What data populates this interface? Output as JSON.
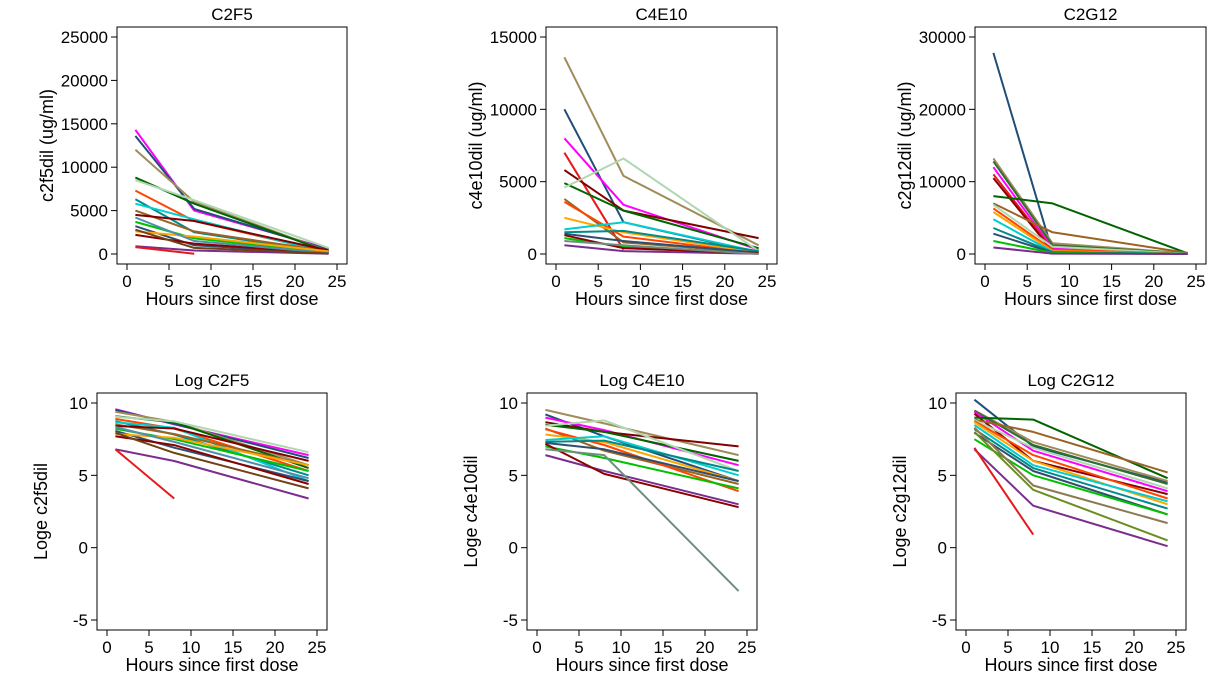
{
  "chart_data": [
    {
      "type": "line",
      "title": "C2F5",
      "xlabel": "Hours since first dose",
      "ylabel": "c2f5dil (ug/ml)",
      "xlim": [
        0,
        25
      ],
      "ylim": [
        0,
        25000
      ],
      "xticks": [
        0,
        5,
        10,
        15,
        20,
        25
      ],
      "yticks": [
        0,
        5000,
        10000,
        15000,
        20000,
        25000
      ],
      "grid": false,
      "x": [
        1,
        8,
        24
      ],
      "series": [
        {
          "color": "#ff00ff",
          "values": [
            14300,
            5000,
            600
          ]
        },
        {
          "color": "#1f4e79",
          "values": [
            13600,
            5200,
            500
          ]
        },
        {
          "color": "#a08c5a",
          "values": [
            12000,
            6000,
            300
          ]
        },
        {
          "color": "#006400",
          "values": [
            8800,
            5800,
            250
          ]
        },
        {
          "color": "#b0d8b0",
          "values": [
            8500,
            6200,
            700
          ]
        },
        {
          "color": "#ff4500",
          "values": [
            7300,
            3800,
            200
          ]
        },
        {
          "color": "#008b8b",
          "values": [
            6300,
            2500,
            150
          ]
        },
        {
          "color": "#00ced1",
          "values": [
            5800,
            4000,
            100
          ]
        },
        {
          "color": "#9a6324",
          "values": [
            5000,
            2600,
            300
          ]
        },
        {
          "color": "#800000",
          "values": [
            4500,
            3800,
            400
          ]
        },
        {
          "color": "#00c000",
          "values": [
            3700,
            1800,
            200
          ]
        },
        {
          "color": "#2f4f6f",
          "values": [
            3200,
            1000,
            100
          ]
        },
        {
          "color": "#ffa500",
          "values": [
            2600,
            2000,
            300
          ]
        },
        {
          "color": "#8b0000",
          "values": [
            2200,
            1200,
            80
          ]
        },
        {
          "color": "#7b2d8e",
          "values": [
            900,
            400,
            30
          ]
        },
        {
          "color": "#e41a1c",
          "values": [
            800,
            30,
            null
          ]
        },
        {
          "color": "#4f8fae",
          "values": [
            4200,
            1500,
            120
          ]
        },
        {
          "color": "#704214",
          "values": [
            2800,
            700,
            60
          ]
        }
      ]
    },
    {
      "type": "line",
      "title": "C4E10",
      "xlabel": "Hours since first dose",
      "ylabel": "c4e10dil (ug/ml)",
      "xlim": [
        0,
        25
      ],
      "ylim": [
        0,
        15000
      ],
      "xticks": [
        0,
        5,
        10,
        15,
        20,
        25
      ],
      "yticks": [
        0,
        5000,
        10000,
        15000
      ],
      "grid": false,
      "x": [
        1,
        8,
        24
      ],
      "series": [
        {
          "color": "#a08c5a",
          "values": [
            13600,
            5400,
            600
          ]
        },
        {
          "color": "#1f4e79",
          "values": [
            10000,
            2200,
            100
          ]
        },
        {
          "color": "#ff00ff",
          "values": [
            8000,
            3400,
            300
          ]
        },
        {
          "color": "#e41a1c",
          "values": [
            7000,
            300,
            null
          ]
        },
        {
          "color": "#800000",
          "values": [
            5800,
            3000,
            1100
          ]
        },
        {
          "color": "#006400",
          "values": [
            4900,
            3000,
            400
          ]
        },
        {
          "color": "#b0d8b0",
          "values": [
            4600,
            6600,
            200
          ]
        },
        {
          "color": "#9a6324",
          "values": [
            3800,
            800,
            80
          ]
        },
        {
          "color": "#ff4500",
          "values": [
            3600,
            1200,
            50
          ]
        },
        {
          "color": "#ffa500",
          "values": [
            2500,
            1500,
            100
          ]
        },
        {
          "color": "#00ced1",
          "values": [
            1700,
            2200,
            150
          ]
        },
        {
          "color": "#008b8b",
          "values": [
            1500,
            1600,
            200
          ]
        },
        {
          "color": "#00c000",
          "values": [
            1100,
            500,
            60
          ]
        },
        {
          "color": "#2f4f6f",
          "values": [
            1400,
            900,
            100
          ]
        },
        {
          "color": "#7b2d8e",
          "values": [
            600,
            200,
            20
          ]
        },
        {
          "color": "#8b0000",
          "values": [
            1300,
            400,
            40
          ]
        },
        {
          "color": "#708e80",
          "values": [
            900,
            600,
            0
          ]
        }
      ]
    },
    {
      "type": "line",
      "title": "C2G12",
      "xlabel": "Hours since first dose",
      "ylabel": "c2g12dil (ug/ml)",
      "xlim": [
        0,
        25
      ],
      "ylim": [
        0,
        30000
      ],
      "xticks": [
        0,
        5,
        10,
        15,
        20,
        25
      ],
      "yticks": [
        0,
        10000,
        20000,
        30000
      ],
      "grid": false,
      "x": [
        1,
        8,
        24
      ],
      "series": [
        {
          "color": "#1f4e79",
          "values": [
            27800,
            300,
            50
          ]
        },
        {
          "color": "#a08c5a",
          "values": [
            13200,
            1500,
            100
          ]
        },
        {
          "color": "#2f6f2f",
          "values": [
            12800,
            1200,
            80
          ]
        },
        {
          "color": "#ff00ff",
          "values": [
            12000,
            800,
            50
          ]
        },
        {
          "color": "#e41a1c",
          "values": [
            11000,
            600,
            null
          ]
        },
        {
          "color": "#8b0000",
          "values": [
            10500,
            400,
            40
          ]
        },
        {
          "color": "#006400",
          "values": [
            8000,
            7000,
            100
          ]
        },
        {
          "color": "#9a6324",
          "values": [
            7000,
            3000,
            150
          ]
        },
        {
          "color": "#b0d8b0",
          "values": [
            6800,
            1000,
            60
          ]
        },
        {
          "color": "#ff4500",
          "values": [
            6300,
            600,
            30
          ]
        },
        {
          "color": "#ffa500",
          "values": [
            5800,
            400,
            20
          ]
        },
        {
          "color": "#00ced1",
          "values": [
            4800,
            300,
            25
          ]
        },
        {
          "color": "#008b8b",
          "values": [
            3600,
            250,
            15
          ]
        },
        {
          "color": "#2f4f6f",
          "values": [
            2800,
            200,
            10
          ]
        },
        {
          "color": "#00c000",
          "values": [
            1800,
            150,
            10
          ]
        },
        {
          "color": "#7b2d8e",
          "values": [
            900,
            50,
            5
          ]
        }
      ]
    },
    {
      "type": "line",
      "title": "Log C2F5",
      "xlabel": "Hours since first dose",
      "ylabel": "Loge c2f5dil",
      "xlim": [
        0,
        25
      ],
      "ylim": [
        -5,
        10
      ],
      "xticks": [
        0,
        5,
        10,
        15,
        20,
        25
      ],
      "yticks": [
        -5,
        0,
        5,
        10
      ],
      "grid": false,
      "x": [
        1,
        8,
        24
      ],
      "series": [
        {
          "color": "#ff00ff",
          "values": [
            9.57,
            8.52,
            6.4
          ]
        },
        {
          "color": "#1f4e79",
          "values": [
            9.52,
            8.56,
            6.2
          ]
        },
        {
          "color": "#a08c5a",
          "values": [
            9.39,
            8.7,
            5.7
          ]
        },
        {
          "color": "#006400",
          "values": [
            9.08,
            8.67,
            5.5
          ]
        },
        {
          "color": "#b0d8b0",
          "values": [
            9.05,
            8.73,
            6.6
          ]
        },
        {
          "color": "#ff4500",
          "values": [
            8.9,
            8.24,
            5.3
          ]
        },
        {
          "color": "#008b8b",
          "values": [
            8.75,
            7.82,
            5.0
          ]
        },
        {
          "color": "#00ced1",
          "values": [
            8.67,
            8.29,
            4.6
          ]
        },
        {
          "color": "#9a6324",
          "values": [
            8.52,
            7.86,
            5.7
          ]
        },
        {
          "color": "#800000",
          "values": [
            8.41,
            8.24,
            6.0
          ]
        },
        {
          "color": "#00c000",
          "values": [
            8.22,
            7.5,
            5.3
          ]
        },
        {
          "color": "#2f4f6f",
          "values": [
            8.07,
            6.91,
            4.6
          ]
        },
        {
          "color": "#ffa500",
          "values": [
            7.86,
            7.6,
            5.7
          ]
        },
        {
          "color": "#8b0000",
          "values": [
            7.7,
            7.09,
            4.4
          ]
        },
        {
          "color": "#7b2d8e",
          "values": [
            6.8,
            5.99,
            3.4
          ]
        },
        {
          "color": "#e41a1c",
          "values": [
            6.8,
            3.4,
            null
          ]
        },
        {
          "color": "#4f8fae",
          "values": [
            8.34,
            7.31,
            4.8
          ]
        },
        {
          "color": "#704214",
          "values": [
            7.94,
            6.55,
            4.1
          ]
        }
      ]
    },
    {
      "type": "line",
      "title": "Log C4E10",
      "xlabel": "Hours since first dose",
      "ylabel": "Loge c4e10dil",
      "xlim": [
        0,
        25
      ],
      "ylim": [
        -5,
        10
      ],
      "xticks": [
        0,
        5,
        10,
        15,
        20,
        25
      ],
      "yticks": [
        -5,
        0,
        5,
        10
      ],
      "grid": false,
      "x": [
        1,
        8,
        24
      ],
      "series": [
        {
          "color": "#a08c5a",
          "values": [
            9.52,
            8.59,
            6.4
          ]
        },
        {
          "color": "#1f4e79",
          "values": [
            9.21,
            7.7,
            4.6
          ]
        },
        {
          "color": "#ff00ff",
          "values": [
            8.99,
            8.13,
            5.7
          ]
        },
        {
          "color": "#800000",
          "values": [
            8.67,
            8.0,
            7.0
          ]
        },
        {
          "color": "#006400",
          "values": [
            8.5,
            8.0,
            6.0
          ]
        },
        {
          "color": "#b0d8b0",
          "values": [
            8.43,
            8.8,
            5.3
          ]
        },
        {
          "color": "#9a6324",
          "values": [
            8.24,
            6.7,
            4.4
          ]
        },
        {
          "color": "#ff4500",
          "values": [
            8.19,
            7.1,
            3.9
          ]
        },
        {
          "color": "#ffa500",
          "values": [
            7.82,
            7.3,
            4.6
          ]
        },
        {
          "color": "#00ced1",
          "values": [
            7.44,
            7.7,
            5.0
          ]
        },
        {
          "color": "#008b8b",
          "values": [
            7.31,
            7.4,
            5.3
          ]
        },
        {
          "color": "#00c000",
          "values": [
            7.0,
            6.2,
            4.1
          ]
        },
        {
          "color": "#2f4f6f",
          "values": [
            7.24,
            6.8,
            4.6
          ]
        },
        {
          "color": "#7b2d8e",
          "values": [
            6.4,
            5.3,
            3.0
          ]
        },
        {
          "color": "#8b0000",
          "values": [
            7.17,
            5.1,
            2.8
          ]
        },
        {
          "color": "#708e80",
          "values": [
            6.8,
            6.4,
            -3.0
          ]
        }
      ]
    },
    {
      "type": "line",
      "title": "Log C2G12",
      "xlabel": "Hours since first dose",
      "ylabel": "Loge c2g12dil",
      "xlim": [
        0,
        25
      ],
      "ylim": [
        -5,
        10
      ],
      "xticks": [
        0,
        5,
        10,
        15,
        20,
        25
      ],
      "yticks": [
        -5,
        0,
        5,
        10
      ],
      "grid": false,
      "x": [
        1,
        8,
        24
      ],
      "series": [
        {
          "color": "#1f4e79",
          "values": [
            10.23,
            7.0,
            4.5
          ]
        },
        {
          "color": "#a08c5a",
          "values": [
            9.49,
            7.3,
            4.6
          ]
        },
        {
          "color": "#2f6f2f",
          "values": [
            9.46,
            7.1,
            4.4
          ]
        },
        {
          "color": "#ff00ff",
          "values": [
            9.39,
            6.7,
            3.9
          ]
        },
        {
          "color": "#8b0000",
          "values": [
            9.26,
            6.0,
            3.7
          ]
        },
        {
          "color": "#006400",
          "values": [
            8.99,
            8.85,
            4.8
          ]
        },
        {
          "color": "#9a6324",
          "values": [
            8.85,
            8.0,
            5.2
          ]
        },
        {
          "color": "#b0d8b0",
          "values": [
            8.82,
            6.9,
            4.1
          ]
        },
        {
          "color": "#ff4500",
          "values": [
            8.75,
            6.4,
            3.4
          ]
        },
        {
          "color": "#ffa500",
          "values": [
            8.67,
            6.0,
            3.0
          ]
        },
        {
          "color": "#00ced1",
          "values": [
            8.48,
            5.7,
            3.2
          ]
        },
        {
          "color": "#008b8b",
          "values": [
            8.19,
            5.5,
            2.7
          ]
        },
        {
          "color": "#2f4f6f",
          "values": [
            7.94,
            5.3,
            2.3
          ]
        },
        {
          "color": "#00c000",
          "values": [
            7.5,
            5.0,
            2.3
          ]
        },
        {
          "color": "#7b2d8e",
          "values": [
            6.8,
            2.9,
            0.1
          ]
        },
        {
          "color": "#e41a1c",
          "values": [
            6.9,
            0.9,
            null
          ]
        },
        {
          "color": "#6b8e23",
          "values": [
            8.0,
            4.0,
            0.5
          ]
        },
        {
          "color": "#8c7853",
          "values": [
            8.3,
            4.3,
            1.7
          ]
        }
      ]
    }
  ]
}
